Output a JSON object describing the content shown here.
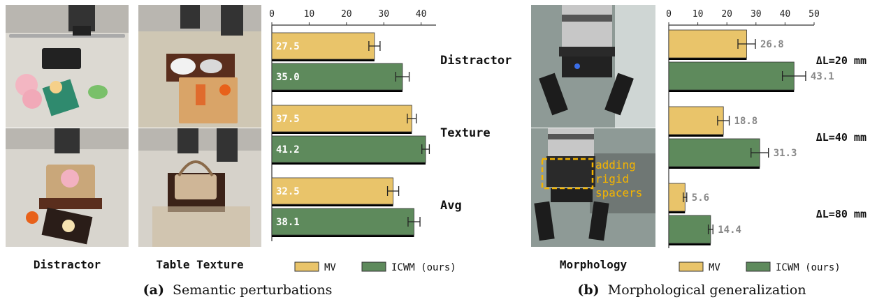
{
  "photos": {
    "distractor_caption": "Distractor",
    "texture_caption": "Table Texture",
    "morphology_caption": "Morphology",
    "spacer_annotation": [
      "adding",
      "rigid",
      "spacers"
    ]
  },
  "subcaptions": {
    "a_label": "(a)",
    "a_text": "Semantic perturbations",
    "b_label": "(b)",
    "b_text": "Morphological generalization"
  },
  "colors": {
    "mv": "#e9c46a",
    "icwm": "#5e8a5c",
    "annotation": "#f4b400"
  },
  "chart_data": [
    {
      "type": "bar",
      "orientation": "horizontal",
      "xlim": [
        0,
        44
      ],
      "xticks": [
        0,
        10,
        20,
        30,
        40
      ],
      "categories": [
        "Distractor",
        "Texture",
        "Avg"
      ],
      "series": [
        {
          "name": "MV",
          "values": [
            27.5,
            37.5,
            32.5
          ],
          "errors": [
            1.5,
            1.2,
            1.5
          ]
        },
        {
          "name": "ICWM (ours)",
          "values": [
            35.0,
            41.2,
            38.1
          ],
          "errors": [
            1.8,
            1.0,
            1.6
          ]
        }
      ],
      "legend": [
        "MV",
        "ICWM (ours)"
      ],
      "value_labels": true,
      "legend_position": "bottom"
    },
    {
      "type": "bar",
      "orientation": "horizontal",
      "xlim": [
        0,
        50
      ],
      "xticks": [
        0,
        10,
        20,
        30,
        40,
        50
      ],
      "categories": [
        "ΔL=20 mm",
        "ΔL=40 mm",
        "ΔL=80 mm"
      ],
      "series": [
        {
          "name": "MV",
          "values": [
            26.8,
            18.8,
            5.6
          ],
          "errors": [
            3.0,
            2.0,
            0.6
          ]
        },
        {
          "name": "ICWM (ours)",
          "values": [
            43.1,
            31.3,
            14.4
          ],
          "errors": [
            4.0,
            3.0,
            0.8
          ]
        }
      ],
      "legend": [
        "MV",
        "ICWM (ours)"
      ],
      "value_labels": true,
      "legend_position": "bottom"
    }
  ]
}
